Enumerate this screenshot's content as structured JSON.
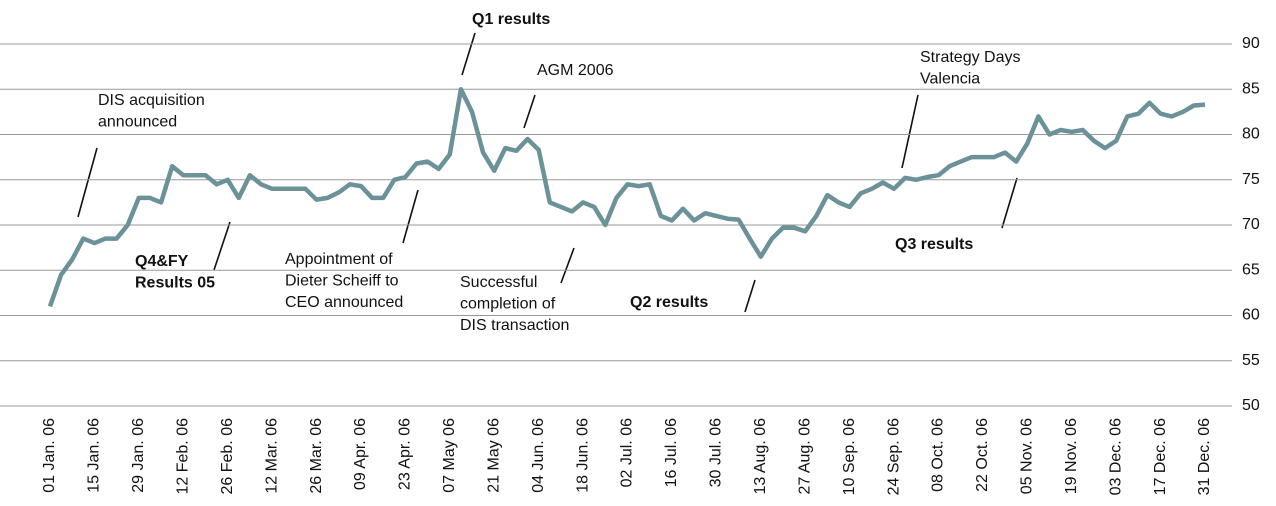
{
  "chart_data": {
    "type": "line",
    "categories": [
      "01 Jan. 06",
      null,
      null,
      null,
      "15 Jan. 06",
      null,
      null,
      null,
      "29 Jan. 06",
      null,
      null,
      null,
      "12 Feb. 06",
      null,
      null,
      null,
      "26 Feb. 06",
      null,
      null,
      null,
      "12 Mar. 06",
      null,
      null,
      null,
      "26 Mar. 06",
      null,
      null,
      null,
      "09 Apr. 06",
      null,
      null,
      null,
      "23 Apr. 06",
      null,
      null,
      null,
      "07 May 06",
      null,
      null,
      null,
      "21 May 06",
      null,
      null,
      null,
      "04 Jun. 06",
      null,
      null,
      null,
      "18 Jun. 06",
      null,
      null,
      null,
      "02 Jul. 06",
      null,
      null,
      null,
      "16 Jul. 06",
      null,
      null,
      null,
      "30 Jul. 06",
      null,
      null,
      null,
      "13 Aug. 06",
      null,
      null,
      null,
      "27 Aug. 06",
      null,
      null,
      null,
      "10 Sep. 06",
      null,
      null,
      null,
      "24 Sep. 06",
      null,
      null,
      null,
      "08 Oct. 06",
      null,
      null,
      null,
      "22 Oct. 06",
      null,
      null,
      null,
      "05 Nov. 06",
      null,
      null,
      null,
      "19 Nov. 06",
      null,
      null,
      null,
      "03 Dec. 06",
      null,
      null,
      null,
      "17 Dec. 06",
      null,
      null,
      null,
      "31 Dec. 06"
    ],
    "values": [
      61,
      64.5,
      66.2,
      68.5,
      68,
      68.5,
      68.5,
      70,
      73,
      73,
      72.5,
      76.5,
      75.5,
      75.5,
      75.5,
      74.5,
      75,
      73,
      75.5,
      74.5,
      74,
      74,
      74,
      74,
      72.8,
      73,
      73.6,
      74.5,
      74.3,
      73,
      73,
      75,
      75.3,
      76.8,
      77,
      76.2,
      77.8,
      85,
      82.5,
      78,
      76,
      78.5,
      78.2,
      79.5,
      78.3,
      72.5,
      72,
      71.5,
      72.5,
      72,
      70,
      73,
      74.5,
      74.3,
      74.5,
      71,
      70.5,
      71.8,
      70.5,
      71.3,
      71,
      70.7,
      70.6,
      68.5,
      66.5,
      68.5,
      69.7,
      69.7,
      69.3,
      71,
      73.3,
      72.5,
      72,
      73.5,
      74,
      74.7,
      74,
      75.2,
      75,
      75.3,
      75.5,
      76.5,
      77,
      77.5,
      77.5,
      77.5,
      78,
      77,
      79,
      82,
      80,
      80.5,
      80.3,
      80.5,
      79.3,
      78.5,
      79.3,
      82,
      82.3,
      83.5,
      82.3,
      82,
      82.5,
      83.2,
      83.3
    ],
    "color": "#6b9199",
    "ylim": [
      50,
      90
    ],
    "yticks": [
      50,
      55,
      60,
      65,
      70,
      75,
      80,
      85,
      90
    ],
    "grid": true,
    "annotations": [
      {
        "lines": [
          "DIS acquisition",
          "announced"
        ],
        "bold": false
      },
      {
        "lines": [
          "Q4&FY",
          "Results 05"
        ],
        "bold": true
      },
      {
        "lines": [
          "Appointment of",
          "Dieter Scheiff to",
          "CEO announced"
        ],
        "bold": false
      },
      {
        "lines": [
          "Q1 results"
        ],
        "bold": true
      },
      {
        "lines": [
          "AGM 2006"
        ],
        "bold": false
      },
      {
        "lines": [
          "Successful",
          "completion of",
          "DIS transaction"
        ],
        "bold": false
      },
      {
        "lines": [
          "Q2 results"
        ],
        "bold": true
      },
      {
        "lines": [
          "Strategy Days",
          "Valencia"
        ],
        "bold": false
      },
      {
        "lines": [
          "Q3 results"
        ],
        "bold": true
      }
    ]
  }
}
